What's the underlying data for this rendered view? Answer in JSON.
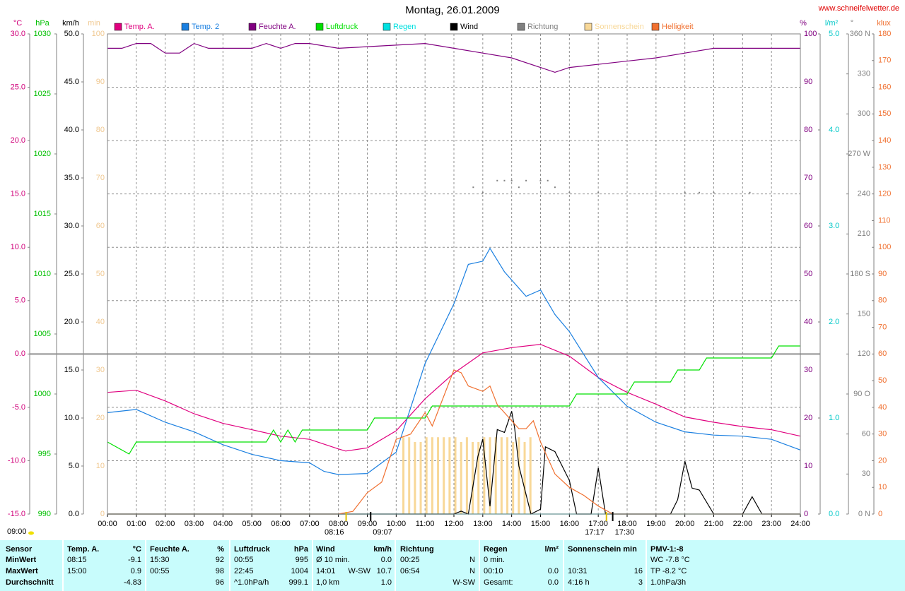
{
  "chart_data": {
    "type": "line",
    "title": "Montag, 26.01.2009",
    "source": "www.schneifelwetter.de",
    "corner_label": "09:00",
    "xlim": [
      0,
      24
    ],
    "xticks": [
      {
        "value": 0,
        "label": "00:00"
      },
      {
        "value": 1,
        "label": "01:00"
      },
      {
        "value": 2,
        "label": "02:00"
      },
      {
        "value": 3,
        "label": "03:00"
      },
      {
        "value": 4,
        "label": "04:00"
      },
      {
        "value": 5,
        "label": "05:00"
      },
      {
        "value": 6,
        "label": "06:00"
      },
      {
        "value": 7,
        "label": "07:00"
      },
      {
        "value": 8,
        "label": "08:00"
      },
      {
        "value": 9,
        "label": "09:00"
      },
      {
        "value": 10,
        "label": "10:00"
      },
      {
        "value": 11,
        "label": "11:00"
      },
      {
        "value": 12,
        "label": "12:00"
      },
      {
        "value": 13,
        "label": "13:00"
      },
      {
        "value": 14,
        "label": "14:00"
      },
      {
        "value": 15,
        "label": "15:00"
      },
      {
        "value": 16,
        "label": "16:00"
      },
      {
        "value": 17,
        "label": "17:00"
      },
      {
        "value": 18,
        "label": "18:00"
      },
      {
        "value": 19,
        "label": "19:00"
      },
      {
        "value": 20,
        "label": "20:00"
      },
      {
        "value": 21,
        "label": "21:00"
      },
      {
        "value": 22,
        "label": "22:00"
      },
      {
        "value": 23,
        "label": "23:00"
      },
      {
        "value": 24,
        "label": "24:00"
      }
    ],
    "grid": true,
    "axes": [
      {
        "unit": "°C",
        "color": "#d0007a",
        "grid": true,
        "lim": [
          -15,
          30
        ],
        "ticks": [
          {
            "value": -15,
            "label": "-15.0"
          },
          {
            "value": -10,
            "label": "-10.0"
          },
          {
            "value": -5,
            "label": "-5.0"
          },
          {
            "value": 0,
            "label": "0.0"
          },
          {
            "value": 5,
            "label": "5.0"
          },
          {
            "value": 10,
            "label": "10.0"
          },
          {
            "value": 15,
            "label": "15.0"
          },
          {
            "value": 20,
            "label": "20.0"
          },
          {
            "value": 25,
            "label": "25.0"
          },
          {
            "value": 30,
            "label": "30.0"
          }
        ]
      },
      {
        "unit": "hPa",
        "color": "#00c000",
        "lim": [
          990,
          1030
        ],
        "ticks": [
          990,
          995,
          1000,
          1005,
          1010,
          1015,
          1020,
          1025,
          1030
        ]
      },
      {
        "unit": "km/h",
        "color": "#000000",
        "lim": [
          0,
          50
        ],
        "ticks": [
          {
            "value": 0,
            "label": "0.0"
          },
          {
            "value": 5,
            "label": "5.0"
          },
          {
            "value": 10,
            "label": "10.0"
          },
          {
            "value": 15,
            "label": "15.0"
          },
          {
            "value": 20,
            "label": "20.0"
          },
          {
            "value": 25,
            "label": "25.0"
          },
          {
            "value": 30,
            "label": "30.0"
          },
          {
            "value": 35,
            "label": "35.0"
          },
          {
            "value": 40,
            "label": "40.0"
          },
          {
            "value": 45,
            "label": "45.0"
          },
          {
            "value": 50,
            "label": "50.0"
          }
        ]
      },
      {
        "unit": "min",
        "color": "#f0c890",
        "lim": [
          0,
          100
        ],
        "ticks": [
          0,
          10,
          20,
          30,
          40,
          50,
          60,
          70,
          80,
          90,
          100
        ]
      },
      {
        "unit": "%",
        "color": "#800080",
        "lim": [
          0,
          100
        ],
        "ticks": [
          0,
          10,
          20,
          30,
          40,
          50,
          60,
          70,
          80,
          90,
          100
        ]
      },
      {
        "unit": "l/m²",
        "color": "#00c8c8",
        "lim": [
          0,
          5
        ],
        "ticks": [
          {
            "value": 0,
            "label": "0.0"
          },
          {
            "value": 1,
            "label": "1.0"
          },
          {
            "value": 2,
            "label": "2.0"
          },
          {
            "value": 3,
            "label": "3.0"
          },
          {
            "value": 4,
            "label": "4.0"
          },
          {
            "value": 5,
            "label": "5.0"
          }
        ]
      },
      {
        "unit": "°",
        "color": "#808080",
        "lim": [
          0,
          360
        ],
        "ticks": [
          {
            "value": 0,
            "label": "0   N"
          },
          30,
          60,
          {
            "value": 90,
            "label": "90  O"
          },
          120,
          150,
          {
            "value": 180,
            "label": "180 S"
          },
          210,
          240,
          {
            "value": 270,
            "label": "270 W"
          },
          300,
          330,
          {
            "value": 360,
            "label": "360 N"
          }
        ]
      },
      {
        "unit": "klux",
        "color": "#f07030",
        "lim": [
          0,
          180
        ],
        "ticks": [
          0,
          10,
          20,
          30,
          40,
          50,
          60,
          70,
          80,
          90,
          100,
          110,
          120,
          130,
          140,
          150,
          160,
          170,
          180
        ]
      }
    ],
    "series": [
      {
        "name": "Temp. A.",
        "color": "#e0007f",
        "axis": "°C",
        "mark": "line",
        "x": [
          0,
          1,
          2,
          3,
          4,
          5,
          6,
          7,
          8,
          8.25,
          9,
          10,
          11,
          12,
          13,
          14,
          15,
          16,
          17,
          18,
          19,
          20,
          21,
          22,
          23,
          24
        ],
        "values": [
          -3.6,
          -3.4,
          -4.4,
          -5.6,
          -6.5,
          -7.1,
          -7.7,
          -8.0,
          -8.9,
          -9.1,
          -8.8,
          -7.2,
          -4.2,
          -1.8,
          0.1,
          0.6,
          0.9,
          -0.2,
          -2.2,
          -3.6,
          -4.7,
          -5.9,
          -6.4,
          -6.8,
          -7.1,
          -7.7
        ]
      },
      {
        "name": "Temp. 2",
        "color": "#1a7fe0",
        "axis": "°C",
        "mark": "line",
        "x": [
          0,
          1,
          2,
          3,
          4,
          5,
          6,
          7,
          7.5,
          8,
          9,
          10,
          11,
          12,
          12.5,
          13,
          13.25,
          13.75,
          14.5,
          15,
          15.5,
          16,
          17,
          18,
          19,
          20,
          21,
          22,
          23,
          24
        ],
        "values": [
          -5.5,
          -5.2,
          -6.4,
          -7.3,
          -8.5,
          -9.4,
          -10.0,
          -10.2,
          -11.0,
          -11.3,
          -11.2,
          -9.2,
          -0.9,
          4.7,
          8.4,
          8.7,
          9.9,
          7.7,
          5.4,
          6.0,
          3.7,
          2.1,
          -2.2,
          -4.9,
          -6.4,
          -7.3,
          -7.6,
          -7.7,
          -8.0,
          -9.0
        ]
      },
      {
        "name": "Feuchte A.",
        "color": "#800080",
        "axis": "%",
        "mark": "line",
        "x": [
          0,
          0.5,
          1,
          1.5,
          2,
          2.5,
          3,
          3.5,
          5,
          5.5,
          6,
          6.5,
          7,
          8,
          11,
          12,
          13,
          14,
          15,
          15.5,
          16,
          17.5,
          19,
          20,
          21,
          24
        ],
        "values": [
          97,
          97,
          98,
          98,
          96,
          96,
          98,
          97,
          97,
          98,
          97,
          98,
          98,
          97,
          98,
          97,
          96,
          95,
          93,
          92,
          93,
          94,
          95,
          96,
          97,
          97
        ]
      },
      {
        "name": "Luftdruck",
        "color": "#00e000",
        "axis": "hPa",
        "mark": "line",
        "x": [
          0,
          0.75,
          1,
          5.5,
          5.75,
          6,
          6.25,
          6.5,
          6.75,
          9,
          9.25,
          11,
          11.25,
          16,
          16.25,
          18,
          18.25,
          19.5,
          19.75,
          20.5,
          20.75,
          23,
          23.25,
          24
        ],
        "values": [
          996,
          995,
          996,
          996,
          997,
          996,
          997,
          996,
          997,
          997,
          998,
          998,
          999,
          999,
          1000,
          1000,
          1001,
          1001,
          1002,
          1002,
          1003,
          1003,
          1004,
          1004
        ]
      },
      {
        "name": "Regen",
        "color": "#00e0e0",
        "axis": "l/m²",
        "mark": "line",
        "x": [
          0,
          24
        ],
        "values": [
          0,
          0
        ]
      },
      {
        "name": "Wind",
        "color": "#000000",
        "axis": "km/h",
        "mark": "line",
        "x": [
          0,
          12,
          12.25,
          12.5,
          12.83,
          13,
          13.25,
          13.5,
          13.75,
          14,
          14.1,
          14.25,
          14.67,
          15,
          15.17,
          15.5,
          16,
          16.25,
          16.75,
          17,
          17.25,
          19.5,
          19.75,
          20,
          20.25,
          20.5,
          21,
          22,
          22.33,
          22.67,
          24
        ],
        "values": [
          0,
          0,
          0.3,
          0,
          6,
          7.8,
          0.8,
          8.8,
          8.5,
          10.7,
          9,
          5,
          0,
          0.5,
          7,
          6.5,
          3.5,
          0,
          0,
          4.8,
          0,
          0,
          1.5,
          5.5,
          2.7,
          2.5,
          0,
          0,
          1.8,
          0,
          0
        ]
      },
      {
        "name": "Richtung",
        "color": "#808080",
        "axis": "°",
        "mark": "dot",
        "x": [
          12.67,
          13.0,
          13.5,
          13.75,
          14.0,
          14.25,
          14.5,
          15.0,
          15.25,
          15.5,
          16.0,
          17.0,
          20.0,
          20.5,
          21.0,
          22.25
        ],
        "values": [
          245,
          241,
          250,
          250,
          250,
          245,
          250,
          250,
          250,
          245,
          241,
          241,
          241,
          241,
          241,
          241
        ]
      },
      {
        "name": "Sonnenschein",
        "color": "#f8d898",
        "axis": "min",
        "mark": "bar",
        "x": [
          10.25,
          10.45,
          10.65,
          10.85,
          11.05,
          11.25,
          11.45,
          11.65,
          11.85,
          12.05,
          12.25,
          12.45,
          12.65,
          12.85,
          13.05,
          13.25,
          13.45,
          13.65,
          13.85,
          14.05,
          14.25,
          14.45,
          14.65
        ],
        "values": [
          16,
          16,
          15,
          15,
          16,
          16,
          16,
          16,
          16,
          16,
          15,
          16,
          15,
          15,
          16,
          16,
          16,
          16,
          16,
          15,
          16,
          15,
          16
        ]
      },
      {
        "name": "Helligkeit",
        "color": "#f07030",
        "axis": "klux",
        "mark": "line",
        "x": [
          0,
          8,
          8.5,
          9,
          9.5,
          10,
          10.5,
          11,
          11.25,
          11.5,
          12,
          12.25,
          12.5,
          13,
          13.25,
          13.5,
          14,
          14.25,
          14.5,
          14.75,
          15,
          15.5,
          16,
          16.5,
          17,
          17.5,
          24
        ],
        "values": [
          0,
          0,
          1,
          8,
          12,
          28,
          30,
          38,
          33,
          40,
          54,
          53,
          48,
          46,
          48,
          41,
          35,
          32,
          32,
          35,
          27,
          15,
          10,
          7,
          3,
          0,
          0
        ]
      }
    ],
    "annotations": [
      {
        "text": "08:16",
        "anchor": "end"
      },
      {
        "text": "09:07",
        "anchor": "start"
      },
      {
        "text": "17:17",
        "anchor": "end"
      },
      {
        "text": "17:30",
        "anchor": "start"
      }
    ]
  },
  "table": {
    "groups": [
      {
        "title": "Sensor",
        "rows": [
          [
            "MinWert"
          ],
          [
            "MaxWert"
          ],
          [
            "Durchschnitt"
          ]
        ]
      },
      {
        "title": "Temp. A.",
        "unit": "°C",
        "rows": [
          [
            "08:15",
            "-9.1"
          ],
          [
            "15:00",
            "0.9"
          ],
          [
            "-4.83"
          ]
        ]
      },
      {
        "title": "Feuchte A.",
        "unit": "%",
        "rows": [
          [
            "15:30",
            "92"
          ],
          [
            "00:55",
            "98"
          ],
          [
            "96"
          ]
        ]
      },
      {
        "title": "Luftdruck",
        "unit": "hPa",
        "rows": [
          [
            "00:55",
            "995"
          ],
          [
            "22:45",
            "1004"
          ],
          [
            "^1.0hPa/h",
            "999.1"
          ]
        ]
      },
      {
        "title": "Wind",
        "unit": "km/h",
        "rows": [
          [
            "Ø 10 min.",
            "0.0"
          ],
          [
            "14:01",
            "W-SW",
            "10.7"
          ],
          [
            "1,0 km",
            "1.0"
          ]
        ]
      },
      {
        "title": "Richtung",
        "rows": [
          [
            "00:25",
            "N"
          ],
          [
            "06:54",
            "N"
          ],
          [
            "W-SW"
          ]
        ]
      },
      {
        "title": "Regen",
        "unit": "l/m²",
        "rows": [
          [
            "0 min."
          ],
          [
            "00:10",
            "0.0"
          ],
          [
            "Gesamt:",
            "0.0"
          ]
        ]
      },
      {
        "title": "Sonnenschein min",
        "rows": [
          null,
          [
            "10:31",
            "16"
          ],
          [
            "4:16 h",
            "3"
          ]
        ]
      },
      {
        "title": "PMV-1:-8",
        "rows": [
          [
            "WC -7.8 °C"
          ],
          [
            "TP -8.2 °C"
          ],
          [
            "1.0hPa/3h"
          ]
        ]
      }
    ]
  }
}
